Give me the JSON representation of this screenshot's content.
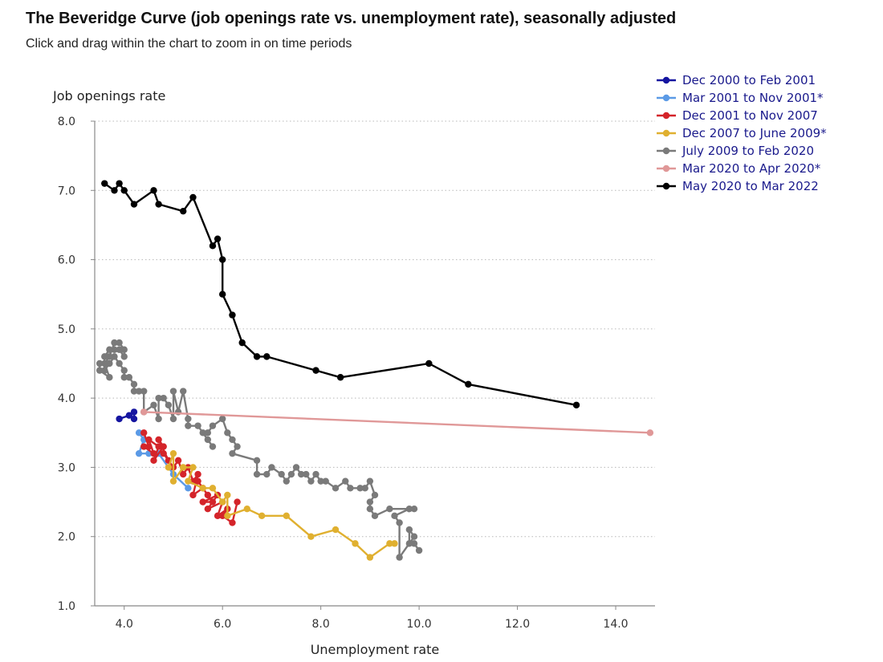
{
  "header": {
    "title": "The Beveridge Curve (job openings rate vs. unemployment rate), seasonally adjusted",
    "subtitle": "Click and drag within the chart to zoom in on time periods"
  },
  "chart_data": {
    "type": "line",
    "xlabel": "Unemployment rate",
    "ylabel": "Job openings rate",
    "xlim": [
      3.4,
      14.8
    ],
    "ylim": [
      1.0,
      8.0
    ],
    "x_ticks": [
      4.0,
      6.0,
      8.0,
      10.0,
      12.0,
      14.0
    ],
    "y_ticks": [
      1.0,
      2.0,
      3.0,
      4.0,
      5.0,
      6.0,
      7.0,
      8.0
    ],
    "grid": "horizontal dotted",
    "legend_position": "top-right",
    "legend_text_color": "#1a1a8c",
    "series": [
      {
        "name": "Dec 2000 to Feb 2001",
        "color": "#1515a0",
        "points": [
          [
            3.9,
            3.7
          ],
          [
            4.1,
            3.75
          ],
          [
            4.2,
            3.8
          ],
          [
            4.2,
            3.7
          ]
        ]
      },
      {
        "name": "Mar 2001 to Nov 2001*",
        "color": "#5b9ae6",
        "points": [
          [
            4.3,
            3.5
          ],
          [
            4.4,
            3.4
          ],
          [
            4.3,
            3.2
          ],
          [
            4.5,
            3.2
          ],
          [
            4.7,
            3.2
          ],
          [
            5.0,
            2.9
          ],
          [
            5.3,
            2.7
          ]
        ]
      },
      {
        "name": "Dec 2001 to Nov 2007",
        "color": "#d4242a",
        "points": [
          [
            4.4,
            3.5
          ],
          [
            4.5,
            3.3
          ],
          [
            4.4,
            3.3
          ],
          [
            4.6,
            3.2
          ],
          [
            4.5,
            3.4
          ],
          [
            4.7,
            3.3
          ],
          [
            4.6,
            3.1
          ],
          [
            4.8,
            3.3
          ],
          [
            4.7,
            3.4
          ],
          [
            4.9,
            3.1
          ],
          [
            4.8,
            3.2
          ],
          [
            5.0,
            3.0
          ],
          [
            5.1,
            3.1
          ],
          [
            5.2,
            2.9
          ],
          [
            5.3,
            3.0
          ],
          [
            5.4,
            2.8
          ],
          [
            5.5,
            2.9
          ],
          [
            5.4,
            2.6
          ],
          [
            5.6,
            2.7
          ],
          [
            5.5,
            2.8
          ],
          [
            5.7,
            2.6
          ],
          [
            5.8,
            2.5
          ],
          [
            5.6,
            2.5
          ],
          [
            5.9,
            2.6
          ],
          [
            5.7,
            2.4
          ],
          [
            6.0,
            2.5
          ],
          [
            5.9,
            2.3
          ],
          [
            6.1,
            2.4
          ],
          [
            6.0,
            2.3
          ],
          [
            6.2,
            2.2
          ],
          [
            6.3,
            2.5
          ]
        ]
      },
      {
        "name": "Dec 2007 to June 2009*",
        "color": "#e0b030",
        "points": [
          [
            4.9,
            3.0
          ],
          [
            5.0,
            3.2
          ],
          [
            5.0,
            2.8
          ],
          [
            5.2,
            3.0
          ],
          [
            5.4,
            3.0
          ],
          [
            5.3,
            2.8
          ],
          [
            5.6,
            2.7
          ],
          [
            5.8,
            2.7
          ],
          [
            6.0,
            2.5
          ],
          [
            6.1,
            2.6
          ],
          [
            6.1,
            2.3
          ],
          [
            6.5,
            2.4
          ],
          [
            6.8,
            2.3
          ],
          [
            7.3,
            2.3
          ],
          [
            7.8,
            2.0
          ],
          [
            8.3,
            2.1
          ],
          [
            8.7,
            1.9
          ],
          [
            9.0,
            1.7
          ],
          [
            9.4,
            1.9
          ],
          [
            9.5,
            1.9
          ]
        ]
      },
      {
        "name": "July 2009 to Feb 2020",
        "color": "#7a7a7a",
        "points": [
          [
            10.0,
            1.8
          ],
          [
            9.9,
            1.9
          ],
          [
            9.8,
            1.9
          ],
          [
            9.8,
            2.1
          ],
          [
            9.9,
            2.0
          ],
          [
            9.6,
            1.7
          ],
          [
            9.6,
            2.2
          ],
          [
            9.5,
            2.3
          ],
          [
            9.8,
            2.4
          ],
          [
            9.9,
            2.4
          ],
          [
            9.4,
            2.4
          ],
          [
            9.1,
            2.3
          ],
          [
            9.0,
            2.4
          ],
          [
            9.0,
            2.5
          ],
          [
            9.1,
            2.6
          ],
          [
            9.0,
            2.8
          ],
          [
            8.9,
            2.7
          ],
          [
            8.8,
            2.7
          ],
          [
            8.6,
            2.7
          ],
          [
            8.5,
            2.8
          ],
          [
            8.3,
            2.7
          ],
          [
            8.1,
            2.8
          ],
          [
            8.0,
            2.8
          ],
          [
            7.9,
            2.9
          ],
          [
            7.8,
            2.8
          ],
          [
            7.7,
            2.9
          ],
          [
            7.6,
            2.9
          ],
          [
            7.5,
            3.0
          ],
          [
            7.4,
            2.9
          ],
          [
            7.3,
            2.8
          ],
          [
            7.2,
            2.9
          ],
          [
            7.0,
            3.0
          ],
          [
            6.9,
            2.9
          ],
          [
            6.7,
            2.9
          ],
          [
            6.7,
            3.1
          ],
          [
            6.2,
            3.2
          ],
          [
            6.3,
            3.3
          ],
          [
            6.2,
            3.4
          ],
          [
            6.1,
            3.5
          ],
          [
            6.0,
            3.7
          ],
          [
            5.8,
            3.6
          ],
          [
            5.7,
            3.5
          ],
          [
            5.6,
            3.5
          ],
          [
            5.8,
            3.3
          ],
          [
            5.7,
            3.4
          ],
          [
            5.5,
            3.6
          ],
          [
            5.3,
            3.6
          ],
          [
            5.3,
            3.7
          ],
          [
            5.2,
            4.1
          ],
          [
            5.1,
            3.8
          ],
          [
            5.0,
            4.1
          ],
          [
            5.0,
            3.7
          ],
          [
            4.9,
            3.9
          ],
          [
            4.8,
            4.0
          ],
          [
            4.7,
            4.0
          ],
          [
            4.7,
            3.7
          ],
          [
            4.6,
            3.9
          ],
          [
            4.4,
            3.8
          ],
          [
            4.4,
            4.1
          ],
          [
            4.3,
            4.1
          ],
          [
            4.2,
            4.1
          ],
          [
            4.2,
            4.2
          ],
          [
            4.1,
            4.3
          ],
          [
            4.0,
            4.3
          ],
          [
            4.0,
            4.4
          ],
          [
            3.9,
            4.5
          ],
          [
            3.8,
            4.6
          ],
          [
            3.7,
            4.5
          ],
          [
            3.6,
            4.4
          ],
          [
            3.6,
            4.6
          ],
          [
            3.7,
            4.7
          ],
          [
            3.8,
            4.7
          ],
          [
            3.9,
            4.7
          ],
          [
            4.0,
            4.6
          ],
          [
            4.0,
            4.7
          ],
          [
            3.9,
            4.8
          ],
          [
            3.8,
            4.8
          ],
          [
            3.7,
            4.6
          ],
          [
            3.6,
            4.5
          ],
          [
            3.7,
            4.3
          ],
          [
            3.5,
            4.4
          ],
          [
            3.5,
            4.5
          ]
        ]
      },
      {
        "name": "Mar 2020 to Apr 2020*",
        "color": "#e09898",
        "points": [
          [
            4.4,
            3.8
          ],
          [
            14.7,
            3.5
          ]
        ]
      },
      {
        "name": "May 2020 to Mar 2022",
        "color": "#000000",
        "points": [
          [
            13.2,
            3.9
          ],
          [
            11.0,
            4.2
          ],
          [
            10.2,
            4.5
          ],
          [
            8.4,
            4.3
          ],
          [
            7.9,
            4.4
          ],
          [
            6.9,
            4.6
          ],
          [
            6.7,
            4.6
          ],
          [
            6.4,
            4.8
          ],
          [
            6.2,
            5.2
          ],
          [
            6.0,
            5.5
          ],
          [
            6.0,
            6.0
          ],
          [
            5.9,
            6.3
          ],
          [
            5.8,
            6.2
          ],
          [
            5.4,
            6.9
          ],
          [
            5.2,
            6.7
          ],
          [
            4.7,
            6.8
          ],
          [
            4.6,
            7.0
          ],
          [
            4.2,
            6.8
          ],
          [
            4.0,
            7.0
          ],
          [
            3.9,
            7.1
          ],
          [
            3.8,
            7.0
          ],
          [
            3.6,
            7.1
          ]
        ]
      }
    ]
  }
}
